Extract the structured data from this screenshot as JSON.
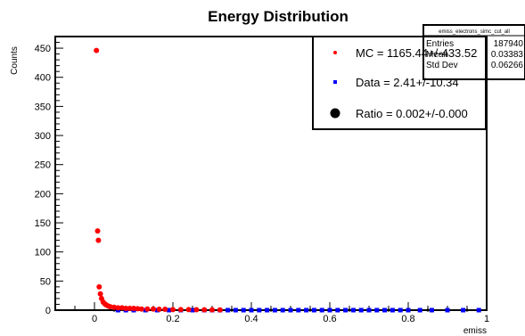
{
  "chart_data": {
    "type": "scatter",
    "title": "Energy Distribution",
    "xlabel": "emiss",
    "ylabel": "Counts",
    "xlim": [
      -0.1,
      1.0
    ],
    "ylim": [
      0,
      470
    ],
    "x_ticks": [
      0,
      0.2,
      0.4,
      0.6,
      0.8,
      1
    ],
    "x_tick_labels": [
      "0",
      "0.2",
      "0.4",
      "0.6",
      "0.8",
      "1"
    ],
    "y_ticks": [
      0,
      50,
      100,
      150,
      200,
      250,
      300,
      350,
      400,
      450
    ],
    "y_tick_labels": [
      "0",
      "50",
      "100",
      "150",
      "200",
      "250",
      "300",
      "350",
      "400",
      "450"
    ],
    "grid": false,
    "legend_position": "top-right",
    "series": [
      {
        "name": "MC = 1165.44+/-433.52",
        "color": "#ff0000",
        "marker": "circle",
        "x": [
          0.005,
          0.008,
          0.01,
          0.012,
          0.015,
          0.018,
          0.022,
          0.026,
          0.03,
          0.035,
          0.04,
          0.05,
          0.06,
          0.07,
          0.08,
          0.09,
          0.1,
          0.11,
          0.12,
          0.135,
          0.15,
          0.165,
          0.18,
          0.2,
          0.22,
          0.24,
          0.26,
          0.28,
          0.3,
          0.32
        ],
        "y": [
          446,
          136,
          120,
          40,
          28,
          20,
          14,
          11,
          9,
          7,
          6,
          5,
          4,
          4,
          3,
          3,
          3,
          2.5,
          2,
          2,
          2,
          1.5,
          1.5,
          1,
          1,
          1,
          0.8,
          0.6,
          0.5,
          0.3
        ]
      },
      {
        "name": "Data = 2.41+/-10.34",
        "color": "#0000ff",
        "marker": "x",
        "x": [
          0.06,
          0.08,
          0.1,
          0.13,
          0.16,
          0.19,
          0.22,
          0.25,
          0.28,
          0.3,
          0.32,
          0.34,
          0.36,
          0.38,
          0.4,
          0.42,
          0.44,
          0.46,
          0.48,
          0.5,
          0.52,
          0.54,
          0.56,
          0.58,
          0.6,
          0.62,
          0.64,
          0.66,
          0.68,
          0.7,
          0.72,
          0.74,
          0.76,
          0.78,
          0.8,
          0.83,
          0.86,
          0.9,
          0.94,
          0.98
        ],
        "y": [
          0,
          0,
          0,
          0,
          0,
          0,
          0,
          0,
          0,
          0,
          0,
          0,
          0,
          0,
          0,
          0,
          0,
          0,
          0,
          0,
          0,
          0,
          0,
          0,
          0,
          0,
          0,
          0,
          0,
          0,
          0,
          0,
          0,
          0,
          0,
          0,
          0,
          0,
          0,
          0
        ]
      },
      {
        "name": "Ratio = 0.002+/-0.000",
        "color": "#000000",
        "marker": "dot",
        "x": [
          0.05,
          0.1,
          0.15,
          0.2,
          0.25,
          0.3,
          0.35,
          0.4,
          0.45,
          0.5,
          0.55,
          0.6,
          0.65,
          0.7,
          0.75,
          0.8,
          0.85,
          0.9,
          0.95
        ],
        "y": [
          0,
          0,
          0,
          0,
          0,
          0,
          0,
          0,
          0,
          0,
          0,
          0,
          0,
          0,
          0,
          0,
          0,
          0,
          0
        ]
      }
    ],
    "stats_box": {
      "header": "emiss_electrons_simc_cut_all",
      "rows": [
        {
          "label": "Entries",
          "value": "187940"
        },
        {
          "label": "Mean",
          "value": "0.03383"
        },
        {
          "label": "Std Dev",
          "value": "0.06266"
        }
      ]
    }
  }
}
